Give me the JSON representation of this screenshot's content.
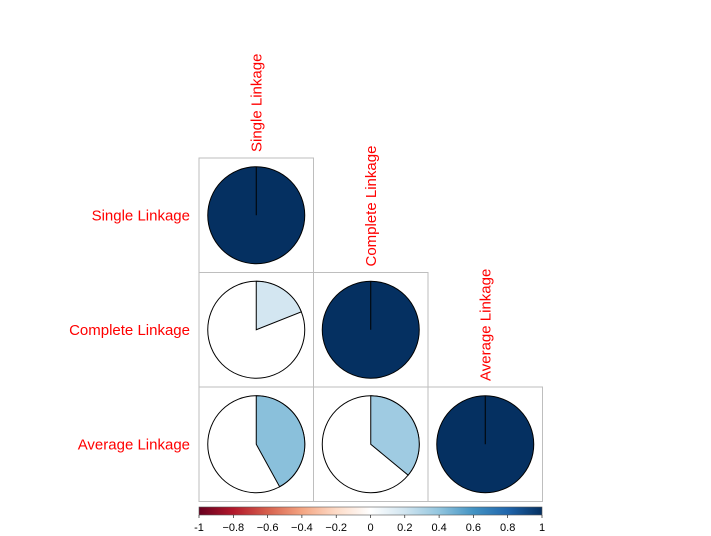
{
  "chart_data": {
    "type": "heatmap",
    "style": "corrplot-pie",
    "layout": "lower-triangle",
    "labels": [
      "Single Linkage",
      "Complete Linkage",
      "Average Linkage"
    ],
    "matrix": [
      [
        1.0,
        null,
        null
      ],
      [
        0.19,
        1.0,
        null
      ],
      [
        0.42,
        0.36,
        1.0
      ]
    ],
    "colorbar": {
      "range": [
        -1,
        1
      ],
      "ticks": [
        "-1",
        "−0.8",
        "−0.6",
        "−0.4",
        "−0.2",
        "0",
        "0.2",
        "0.4",
        "0.6",
        "0.8",
        "1"
      ],
      "colors": [
        "#67001f",
        "#b2182b",
        "#d6604d",
        "#f4a582",
        "#fddbc7",
        "#ffffff",
        "#d1e5f0",
        "#92c5de",
        "#4393c3",
        "#2166ac",
        "#053061"
      ]
    },
    "label_color": "#ff0000",
    "grid": true
  }
}
